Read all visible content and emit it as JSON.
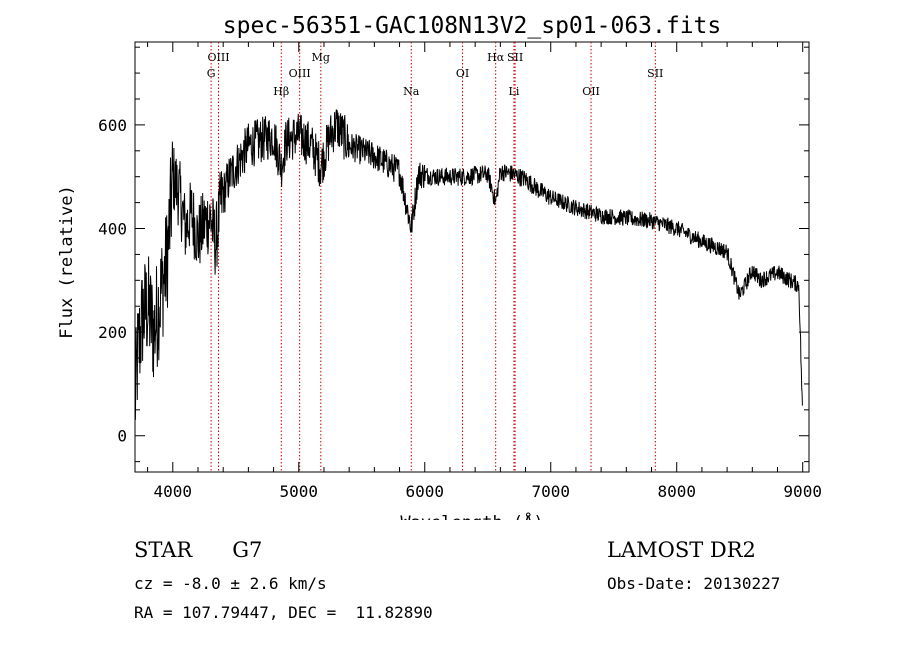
{
  "chart_data": {
    "type": "line",
    "title": "spec-56351-GAC108N13V2_sp01-063.fits",
    "xlabel": "Wavelength (Å)",
    "ylabel": "Flux (relative)",
    "xlim": [
      3700,
      9050
    ],
    "ylim": [
      -70,
      760
    ],
    "x_ticks": [
      4000,
      5000,
      6000,
      7000,
      8000,
      9000
    ],
    "x_tick_labels": [
      "4000",
      "5000",
      "6000",
      "7000",
      "8000",
      "9000"
    ],
    "y_ticks": [
      0,
      200,
      400,
      600
    ],
    "y_tick_labels": [
      "0",
      "200",
      "400",
      "600"
    ],
    "grid": false,
    "line_color": "#000000",
    "marker_color": "#cc0000",
    "spectrum_anchors": [
      [
        3700,
        60
      ],
      [
        3720,
        150
      ],
      [
        3760,
        230
      ],
      [
        3800,
        250
      ],
      [
        3850,
        200
      ],
      [
        3900,
        270
      ],
      [
        3950,
        330
      ],
      [
        3980,
        420
      ],
      [
        4000,
        500
      ],
      [
        4050,
        470
      ],
      [
        4100,
        400
      ],
      [
        4150,
        430
      ],
      [
        4200,
        380
      ],
      [
        4250,
        410
      ],
      [
        4300,
        420
      ],
      [
        4340,
        370
      ],
      [
        4380,
        450
      ],
      [
        4450,
        500
      ],
      [
        4500,
        520
      ],
      [
        4600,
        560
      ],
      [
        4700,
        570
      ],
      [
        4800,
        580
      ],
      [
        4861,
        520
      ],
      [
        4900,
        570
      ],
      [
        5000,
        580
      ],
      [
        5100,
        560
      ],
      [
        5175,
        520
      ],
      [
        5250,
        580
      ],
      [
        5300,
        600
      ],
      [
        5400,
        560
      ],
      [
        5500,
        550
      ],
      [
        5600,
        540
      ],
      [
        5700,
        525
      ],
      [
        5800,
        510
      ],
      [
        5893,
        400
      ],
      [
        5950,
        505
      ],
      [
        6100,
        500
      ],
      [
        6300,
        500
      ],
      [
        6500,
        505
      ],
      [
        6563,
        450
      ],
      [
        6600,
        510
      ],
      [
        6700,
        505
      ],
      [
        6800,
        495
      ],
      [
        6900,
        475
      ],
      [
        7000,
        460
      ],
      [
        7200,
        440
      ],
      [
        7400,
        425
      ],
      [
        7600,
        420
      ],
      [
        7800,
        415
      ],
      [
        8000,
        400
      ],
      [
        8200,
        375
      ],
      [
        8400,
        355
      ],
      [
        8498,
        270
      ],
      [
        8542,
        290
      ],
      [
        8600,
        320
      ],
      [
        8662,
        300
      ],
      [
        8800,
        315
      ],
      [
        8900,
        300
      ],
      [
        8970,
        290
      ],
      [
        9000,
        30
      ]
    ],
    "lines": [
      {
        "label": "OIII",
        "wavelength": 4363,
        "row": 0
      },
      {
        "label": "G",
        "wavelength": 4304,
        "row": 1
      },
      {
        "label": "Hβ",
        "wavelength": 4861,
        "row": 2
      },
      {
        "label": "OIII",
        "wavelength": 5007,
        "row": 1
      },
      {
        "label": "Mg",
        "wavelength": 5175,
        "row": 0
      },
      {
        "label": "Na",
        "wavelength": 5893,
        "row": 2
      },
      {
        "label": "OI",
        "wavelength": 6300,
        "row": 1
      },
      {
        "label": "Hα",
        "wavelength": 6563,
        "row": 0
      },
      {
        "label": "SII",
        "wavelength": 6717,
        "row": 0
      },
      {
        "label": "Li",
        "wavelength": 6708,
        "row": 2
      },
      {
        "label": "OII",
        "wavelength": 7320,
        "row": 2
      },
      {
        "label": "SII",
        "wavelength": 7830,
        "row": 1
      }
    ]
  },
  "info": {
    "object_class": "STAR",
    "subclass": "G7",
    "survey": "LAMOST DR2",
    "redshift": "cz = -8.0 ± 2.6 km/s",
    "obs_date": "Obs-Date: 20130227",
    "coordinates": "RA = 107.79447, DEC =  11.82890"
  }
}
